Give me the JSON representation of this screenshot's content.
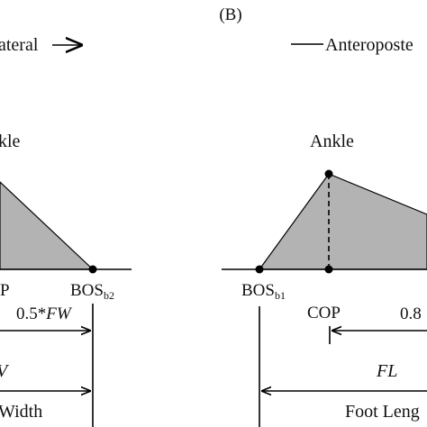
{
  "panel_b": {
    "label": "(B)"
  },
  "left_panel": {
    "direction_label": "ateral",
    "ankle_label": "kle",
    "cop_label": "P",
    "bos_label": "BOS",
    "bos_sub": "b2",
    "fw_half_prefix": "0.5*",
    "fw_half_var": "FW",
    "fw_var": "V",
    "width_label": "Width"
  },
  "right_panel": {
    "direction_label": "Anteroposte",
    "ankle_label": "Ankle",
    "bos_label": "BOS",
    "bos_sub": "b1",
    "cop_label": "COP",
    "fl_fraction": "0.8",
    "fl_var": "FL",
    "foot_length_label": "Foot Leng"
  },
  "colors": {
    "fill": "#b3b3b3",
    "stroke": "#000000",
    "text": "#111111"
  }
}
